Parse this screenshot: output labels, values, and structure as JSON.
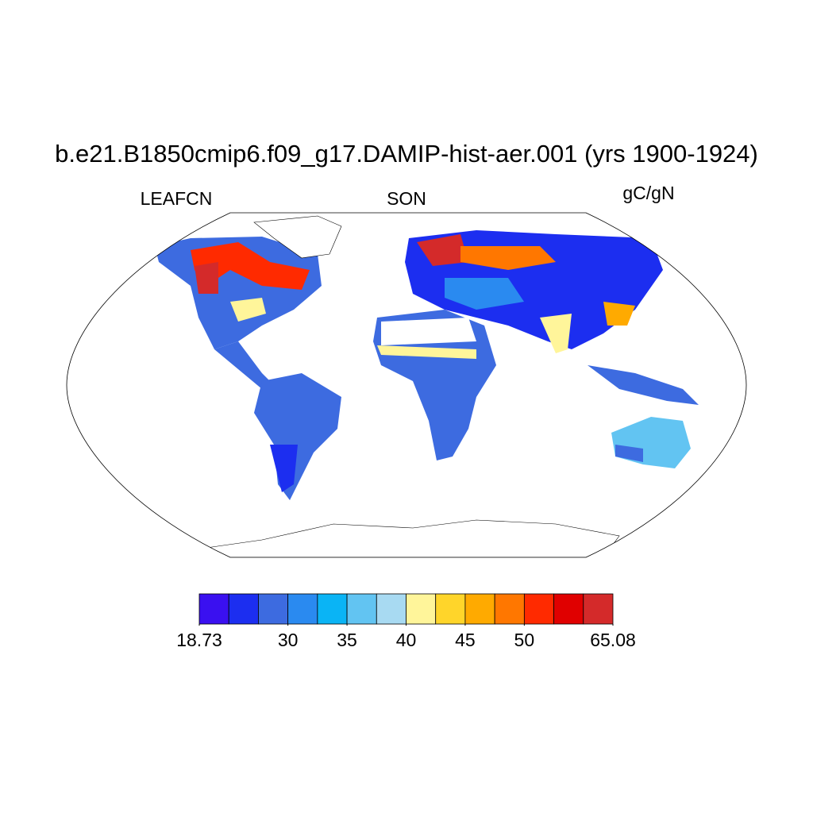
{
  "title": "b.e21.B1850cmip6.f09_g17.DAMIP-hist-aer.001 (yrs 1900-1924)",
  "left_label": "LEAFCN",
  "center_label": "SON",
  "right_label": "gC/gN",
  "colorbar": {
    "colors": [
      "#3a10f0",
      "#1c2ef0",
      "#3d6be0",
      "#2a8af0",
      "#0ab4f5",
      "#62c4f2",
      "#a8daf2",
      "#fff59a",
      "#ffd52a",
      "#ffaa00",
      "#ff7700",
      "#ff2a00",
      "#e00000",
      "#d42a2a"
    ],
    "levels": [
      18.73,
      22.5,
      26.25,
      30,
      32.5,
      35,
      37.5,
      40,
      42.5,
      45,
      47.5,
      50,
      55,
      60,
      65.08
    ],
    "ticks": [
      18.73,
      30,
      35,
      40,
      45,
      50,
      65.08
    ]
  }
}
